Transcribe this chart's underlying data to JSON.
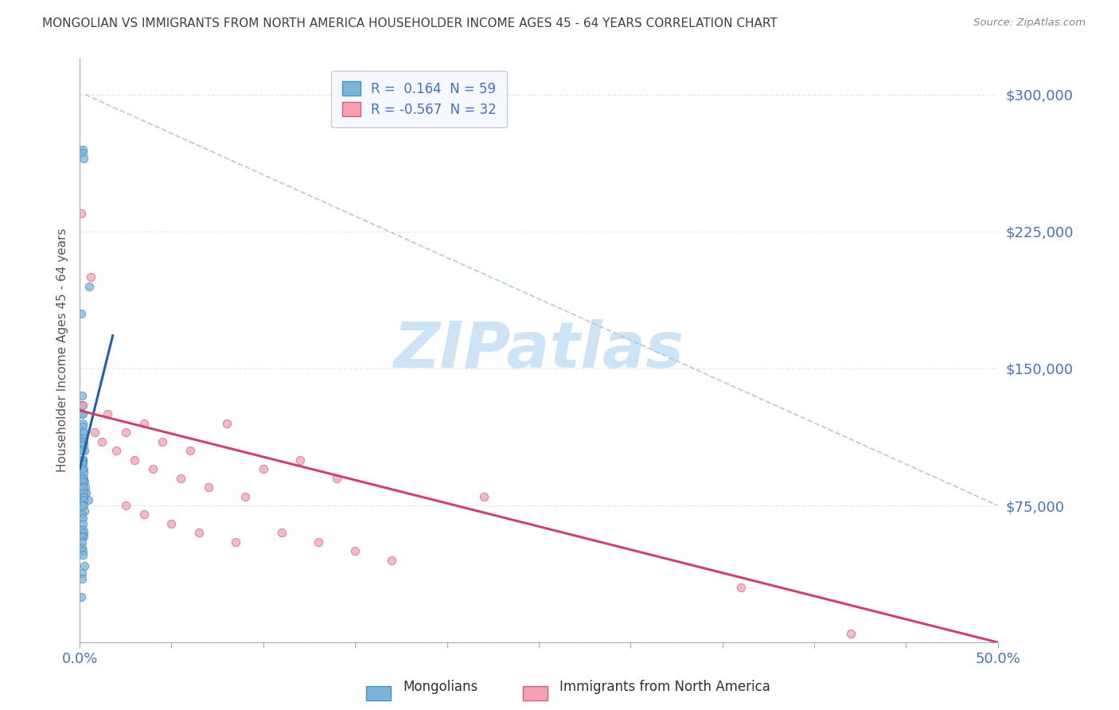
{
  "title": "MONGOLIAN VS IMMIGRANTS FROM NORTH AMERICA HOUSEHOLDER INCOME AGES 45 - 64 YEARS CORRELATION CHART",
  "source": "Source: ZipAtlas.com",
  "ylabel": "Householder Income Ages 45 - 64 years",
  "xlim": [
    0.0,
    50.0
  ],
  "ylim": [
    0,
    320000
  ],
  "yticks": [
    0,
    75000,
    150000,
    225000,
    300000
  ],
  "legend_r1": "R =  0.164  N = 59",
  "legend_r2": "R = -0.567  N = 32",
  "legend_label1": "Mongolians",
  "legend_label2": "Immigrants from North America",
  "blue_dot_color": "#7ab4d8",
  "blue_edge_color": "#4a90c4",
  "pink_dot_color": "#f4a0b0",
  "pink_edge_color": "#d06080",
  "blue_line_color": "#2060b0",
  "pink_line_color": "#d04070",
  "dash_line_color": "#b0c8e0",
  "title_color": "#404040",
  "axis_color": "#4472c4",
  "source_color": "#888888",
  "watermark_color": "#cce4f5",
  "bg_color": "#ffffff",
  "grid_color": "#e8e8e8",
  "blue_scatter_x": [
    0.15,
    0.18,
    0.22,
    0.5,
    0.1,
    0.12,
    0.13,
    0.14,
    0.15,
    0.16,
    0.17,
    0.18,
    0.19,
    0.2,
    0.21,
    0.22,
    0.25,
    0.12,
    0.14,
    0.15,
    0.16,
    0.17,
    0.18,
    0.19,
    0.2,
    0.22,
    0.25,
    0.28,
    0.35,
    0.45,
    0.11,
    0.13,
    0.13,
    0.14,
    0.16,
    0.17,
    0.18,
    0.19,
    0.2,
    0.2,
    0.21,
    0.22,
    0.24,
    0.11,
    0.14,
    0.16,
    0.17,
    0.18,
    0.2,
    0.22,
    0.11,
    0.13,
    0.14,
    0.16,
    0.17,
    0.27,
    0.13,
    0.14,
    0.1
  ],
  "blue_scatter_y": [
    270000,
    268000,
    265000,
    195000,
    180000,
    135000,
    130000,
    125000,
    125000,
    120000,
    118000,
    115000,
    115000,
    112000,
    110000,
    108000,
    105000,
    110000,
    108000,
    100000,
    100000,
    100000,
    98000,
    95000,
    93000,
    90000,
    88000,
    85000,
    82000,
    78000,
    105000,
    100000,
    98000,
    95000,
    90000,
    88000,
    85000,
    82000,
    80000,
    80000,
    78000,
    75000,
    72000,
    75000,
    70000,
    68000,
    65000,
    62000,
    60000,
    58000,
    58000,
    55000,
    52000,
    50000,
    48000,
    42000,
    38000,
    35000,
    25000
  ],
  "pink_scatter_x": [
    0.1,
    0.15,
    0.6,
    1.5,
    2.5,
    3.5,
    4.5,
    6.0,
    8.0,
    10.0,
    12.0,
    14.0,
    0.8,
    1.2,
    2.0,
    3.0,
    4.0,
    5.5,
    7.0,
    9.0,
    2.5,
    3.5,
    5.0,
    6.5,
    8.5,
    11.0,
    13.0,
    15.0,
    17.0,
    22.0,
    36.0,
    42.0
  ],
  "pink_scatter_y": [
    235000,
    130000,
    200000,
    125000,
    115000,
    120000,
    110000,
    105000,
    120000,
    95000,
    100000,
    90000,
    115000,
    110000,
    105000,
    100000,
    95000,
    90000,
    85000,
    80000,
    75000,
    70000,
    65000,
    60000,
    55000,
    60000,
    55000,
    50000,
    45000,
    80000,
    30000,
    5000
  ],
  "blue_line_x": [
    0.0,
    1.8
  ],
  "blue_line_y": [
    95000,
    168000
  ],
  "pink_line_x": [
    0.0,
    50.0
  ],
  "pink_line_y": [
    127000,
    0
  ],
  "dashed_line_x": [
    0.3,
    50.0
  ],
  "dashed_line_y": [
    300000,
    75000
  ],
  "xtick_positions": [
    0,
    5,
    10,
    15,
    20,
    25,
    30,
    35,
    40,
    45,
    50
  ]
}
